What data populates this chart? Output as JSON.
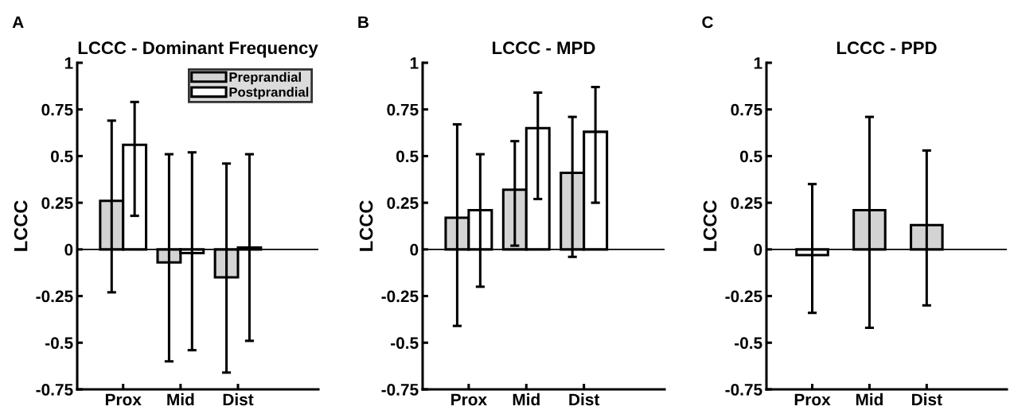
{
  "chart_data": [
    {
      "type": "bar",
      "title": "LCCC - Dominant Frequency",
      "ylabel": "LCCC",
      "annotations": [
        "A"
      ],
      "categories": [
        "Prox",
        "Mid",
        "Dist"
      ],
      "series": [
        {
          "name": "Preprandial",
          "color": "#d3d3d3",
          "values": [
            0.26,
            -0.07,
            -0.15
          ],
          "errors": [
            [
              -0.23,
              0.69
            ],
            [
              -0.6,
              0.51
            ],
            [
              -0.66,
              0.46
            ]
          ]
        },
        {
          "name": "Postprandial",
          "color": "#ffffff",
          "values": [
            0.56,
            -0.02,
            0.01
          ],
          "errors": [
            [
              0.18,
              0.79
            ],
            [
              -0.54,
              0.52
            ],
            [
              -0.49,
              0.51
            ]
          ]
        }
      ],
      "ylim": [
        -0.75,
        1
      ],
      "yticks": [
        -0.75,
        -0.5,
        -0.25,
        0,
        0.25,
        0.5,
        0.75,
        1
      ],
      "ref_lines": [
        {
          "axis": "y",
          "value": 0,
          "color": "#000000"
        }
      ],
      "legend": "top right",
      "grid": false
    },
    {
      "type": "bar",
      "title": "LCCC - MPD",
      "ylabel": "LCCC",
      "annotations": [
        "B"
      ],
      "categories": [
        "Prox",
        "Mid",
        "Dist"
      ],
      "series": [
        {
          "color": "#d3d3d3",
          "values": [
            0.17,
            0.32,
            0.41
          ],
          "errors": [
            [
              -0.41,
              0.67
            ],
            [
              0.02,
              0.58
            ],
            [
              -0.04,
              0.71
            ]
          ]
        },
        {
          "color": "#ffffff",
          "values": [
            0.21,
            0.65,
            0.63
          ],
          "errors": [
            [
              -0.2,
              0.51
            ],
            [
              0.27,
              0.84
            ],
            [
              0.25,
              0.87
            ]
          ]
        }
      ],
      "ylim": [
        -0.75,
        1
      ],
      "yticks": [
        -0.75,
        -0.5,
        -0.25,
        0,
        0.25,
        0.5,
        0.75,
        1
      ],
      "ref_lines": [
        {
          "axis": "y",
          "value": 0,
          "color": "#000000"
        }
      ],
      "legend": false,
      "grid": false
    },
    {
      "type": "bar",
      "title": "LCCC - PPD",
      "ylabel": "LCCC",
      "annotations": [
        "C"
      ],
      "categories": [
        "Prox",
        "Mid",
        "Dist"
      ],
      "values": [
        -0.03,
        0.21,
        0.13
      ],
      "colors": [
        "#ffffff",
        "#d3d3d3",
        "#d3d3d3"
      ],
      "errors": [
        [
          -0.34,
          0.35
        ],
        [
          -0.42,
          0.71
        ],
        [
          -0.3,
          0.53
        ]
      ],
      "ylim": [
        -0.75,
        1
      ],
      "yticks": [
        -0.75,
        -0.5,
        -0.25,
        0,
        0.25,
        0.5,
        0.75,
        1
      ],
      "ref_lines": [
        {
          "axis": "y",
          "value": 0,
          "color": "#000000"
        }
      ],
      "legend": false,
      "grid": false
    }
  ]
}
